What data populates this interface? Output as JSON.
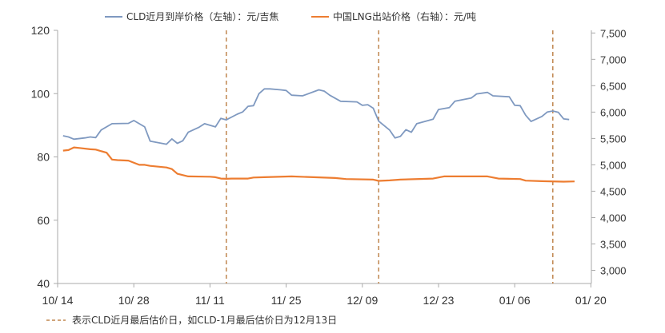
{
  "chart_data": {
    "type": "line",
    "x_ticks": [
      "10/ 14",
      "10/ 28",
      "11/ 11",
      "11/ 25",
      "12/ 09",
      "12/ 23",
      "01/ 06",
      "01/ 20"
    ],
    "y_left": {
      "min": 40,
      "max": 120,
      "ticks": [
        "40",
        "60",
        "80",
        "100",
        "120"
      ]
    },
    "y_right": {
      "min": 2750,
      "max": 7550,
      "ticks": [
        "3,000",
        "3,500",
        "4,000",
        "4,500",
        "5,000",
        "5,500",
        "6,000",
        "6,500",
        "7,000",
        "7,500"
      ]
    },
    "series": [
      {
        "name": "CLD近月到岸价格（左轴）：元/吉焦",
        "axis": "left",
        "color": "#7f99c0",
        "points": [
          [
            1,
            86.7
          ],
          [
            2,
            86.3
          ],
          [
            3,
            85.6
          ],
          [
            5,
            86.0
          ],
          [
            6,
            86.3
          ],
          [
            7,
            86.1
          ],
          [
            8,
            88.5
          ],
          [
            10,
            90.5
          ],
          [
            13,
            90.6
          ],
          [
            14,
            91.5
          ],
          [
            16,
            89.5
          ],
          [
            17,
            85.0
          ],
          [
            20,
            84.0
          ],
          [
            21,
            85.7
          ],
          [
            22,
            84.3
          ],
          [
            23,
            85.1
          ],
          [
            24,
            87.8
          ],
          [
            26,
            89.4
          ],
          [
            27,
            90.5
          ],
          [
            29,
            89.5
          ],
          [
            30,
            92.2
          ],
          [
            31,
            91.7
          ],
          [
            33,
            93.5
          ],
          [
            34,
            94.2
          ],
          [
            35,
            96.0
          ],
          [
            36,
            96.2
          ],
          [
            37,
            100.0
          ],
          [
            38,
            101.5
          ],
          [
            39,
            101.5
          ],
          [
            41,
            101.2
          ],
          [
            42,
            101.0
          ],
          [
            43,
            99.5
          ],
          [
            45,
            99.3
          ],
          [
            48,
            101.2
          ],
          [
            49,
            100.8
          ],
          [
            50,
            99.5
          ],
          [
            52,
            97.6
          ],
          [
            55,
            97.4
          ],
          [
            56,
            96.3
          ],
          [
            57,
            96.5
          ],
          [
            58,
            95.4
          ],
          [
            59,
            91.3
          ],
          [
            61,
            88.5
          ],
          [
            62,
            86.0
          ],
          [
            63,
            86.5
          ],
          [
            64,
            88.6
          ],
          [
            65,
            87.8
          ],
          [
            66,
            90.5
          ],
          [
            69,
            91.9
          ],
          [
            70,
            95.0
          ],
          [
            72,
            95.6
          ],
          [
            73,
            97.6
          ],
          [
            76,
            98.6
          ],
          [
            77,
            99.9
          ],
          [
            79,
            100.4
          ],
          [
            80,
            99.3
          ],
          [
            83,
            99.0
          ],
          [
            84,
            96.3
          ],
          [
            85,
            96.2
          ],
          [
            86,
            93.2
          ],
          [
            87,
            91.2
          ],
          [
            89,
            92.8
          ],
          [
            90,
            94.2
          ],
          [
            91,
            94.5
          ],
          [
            92,
            94.1
          ],
          [
            93,
            92.0
          ],
          [
            94,
            91.8
          ]
        ]
      },
      {
        "name": "中国LNG出站价格（右轴）：元/吨",
        "axis": "right",
        "color": "#ed7d31",
        "points": [
          [
            1,
            5270
          ],
          [
            2,
            5280
          ],
          [
            3,
            5330
          ],
          [
            4,
            5320
          ],
          [
            6,
            5295
          ],
          [
            7,
            5290
          ],
          [
            9,
            5230
          ],
          [
            10,
            5100
          ],
          [
            11,
            5090
          ],
          [
            13,
            5080
          ],
          [
            15,
            5000
          ],
          [
            16,
            5000
          ],
          [
            17,
            4980
          ],
          [
            20,
            4950
          ],
          [
            21,
            4920
          ],
          [
            22,
            4830
          ],
          [
            24,
            4780
          ],
          [
            28,
            4775
          ],
          [
            29,
            4765
          ],
          [
            30,
            4740
          ],
          [
            31,
            4735
          ],
          [
            32,
            4740
          ],
          [
            35,
            4740
          ],
          [
            36,
            4760
          ],
          [
            38,
            4765
          ],
          [
            43,
            4780
          ],
          [
            47,
            4765
          ],
          [
            51,
            4750
          ],
          [
            53,
            4730
          ],
          [
            58,
            4720
          ],
          [
            59,
            4695
          ],
          [
            61,
            4705
          ],
          [
            63,
            4720
          ],
          [
            69,
            4740
          ],
          [
            71,
            4780
          ],
          [
            79,
            4780
          ],
          [
            81,
            4740
          ],
          [
            85,
            4730
          ],
          [
            86,
            4700
          ],
          [
            89,
            4690
          ],
          [
            93,
            4680
          ],
          [
            95,
            4685
          ]
        ]
      }
    ],
    "vertical_markers": [
      31,
      59,
      91
    ],
    "footnote": "表示CLD近月最后估价日，如CLD-1月最后估价日为12月13日",
    "grid": false,
    "legend_position": "top"
  }
}
